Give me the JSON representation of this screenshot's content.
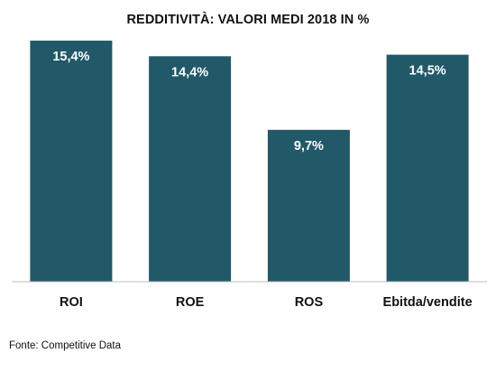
{
  "chart_data": {
    "type": "bar",
    "title": "REDDITIVITÀ: VALORI MEDI 2018 IN %",
    "categories": [
      "ROI",
      "ROE",
      "ROS",
      "Ebitda/vendite"
    ],
    "values": [
      15.4,
      14.4,
      9.7,
      14.5
    ],
    "value_labels": [
      "15,4%",
      "14,4%",
      "9,7%",
      "14,5%"
    ],
    "ylim": [
      0,
      15.4
    ],
    "grid": false,
    "legend": "none",
    "bar_color": "#215968"
  },
  "source": "Fonte: Competitive Data"
}
